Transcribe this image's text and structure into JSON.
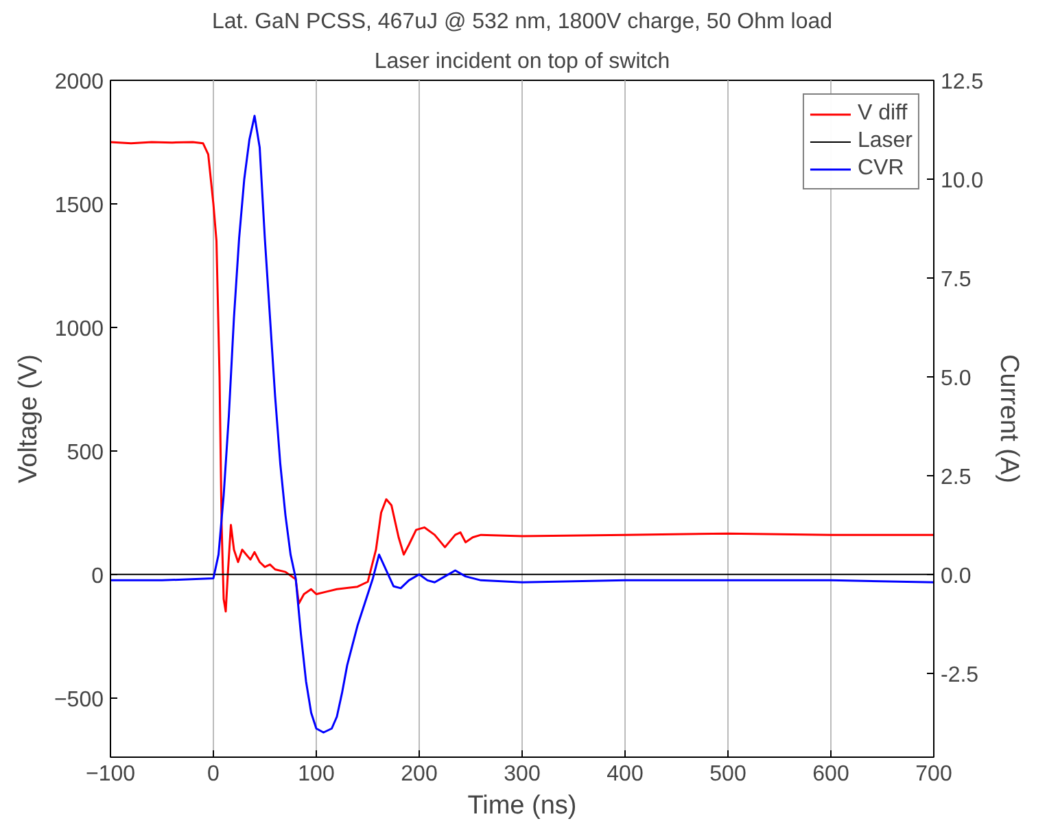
{
  "chart_data": {
    "type": "line",
    "title": "Lat. GaN PCSS, 467uJ @ 532 nm, 1800V charge, 50 Ohm load",
    "subtitle": "Laser incident on top of switch",
    "xlabel": "Time (ns)",
    "ylabel": "Voltage (V)",
    "y2label": "Current (A)",
    "xlim": [
      -100,
      700
    ],
    "xticks": [
      -100,
      0,
      100,
      200,
      300,
      400,
      500,
      600,
      700
    ],
    "ylim": [
      -740,
      2000
    ],
    "yticks": [
      -500,
      0,
      500,
      1000,
      1500,
      2000
    ],
    "y2lim": [
      -4.625,
      12.5
    ],
    "y2ticks": [
      {
        "value": -2.5,
        "label": "-2.5"
      },
      {
        "value": 0,
        "label": "0.0"
      },
      {
        "value": 2.5,
        "label": "2.5"
      },
      {
        "value": 5,
        "label": "5.0"
      },
      {
        "value": 7.5,
        "label": "7.5"
      },
      {
        "value": 10,
        "label": "10.0"
      },
      {
        "value": 12.5,
        "label": "12.5"
      }
    ],
    "grid": "x",
    "legend": "top right",
    "line_style": "solid",
    "marker": "none",
    "series": [
      {
        "name": "V diff",
        "color": "#ff0000",
        "x": [
          -100,
          -80,
          -60,
          -40,
          -20,
          -10,
          -5,
          0,
          3,
          6,
          8,
          10,
          12,
          14,
          17,
          20,
          24,
          28,
          32,
          36,
          40,
          45,
          50,
          55,
          60,
          70,
          80,
          83,
          88,
          95,
          100,
          110,
          120,
          140,
          150,
          158,
          163,
          168,
          173,
          180,
          185,
          190,
          197,
          205,
          215,
          225,
          235,
          240,
          245,
          252,
          260,
          300,
          400,
          500,
          600,
          700
        ],
        "values": [
          1750,
          1745,
          1750,
          1748,
          1750,
          1745,
          1700,
          1500,
          1350,
          800,
          200,
          -100,
          -150,
          0,
          200,
          100,
          50,
          100,
          80,
          60,
          90,
          50,
          30,
          40,
          20,
          10,
          -20,
          -118,
          -80,
          -60,
          -80,
          -70,
          -60,
          -50,
          -30,
          100,
          250,
          304,
          280,
          150,
          80,
          120,
          180,
          190,
          160,
          110,
          160,
          170,
          130,
          150,
          160,
          155,
          160,
          165,
          160,
          160
        ]
      },
      {
        "name": "Laser",
        "color": "#000000",
        "x": [
          -100,
          700
        ],
        "values": [
          0,
          0
        ]
      },
      {
        "name": "CVR",
        "color": "#0000ff",
        "axis": "y2",
        "x": [
          -100,
          -50,
          0,
          5,
          10,
          15,
          20,
          25,
          30,
          35,
          40,
          45,
          50,
          55,
          60,
          65,
          70,
          75,
          80,
          85,
          90,
          95,
          100,
          107,
          115,
          120,
          125,
          130,
          140,
          150,
          155,
          161,
          168,
          175,
          182,
          190,
          200,
          208,
          215,
          225,
          235,
          245,
          260,
          300,
          400,
          500,
          600,
          700
        ],
        "values": [
          -0.15,
          -0.15,
          -0.1,
          0.5,
          2,
          4,
          6.5,
          8.5,
          10,
          11,
          11.6,
          10.8,
          8.5,
          6.5,
          4.5,
          2.8,
          1.5,
          0.5,
          -0.1,
          -1.5,
          -2.7,
          -3.5,
          -3.9,
          -4.0,
          -3.9,
          -3.6,
          -3,
          -2.3,
          -1.3,
          -0.5,
          -0.1,
          0.5,
          0.1,
          -0.3,
          -0.35,
          -0.15,
          0,
          -0.15,
          -0.2,
          -0.05,
          0.1,
          -0.05,
          -0.15,
          -0.2,
          -0.15,
          -0.15,
          -0.15,
          -0.2
        ]
      }
    ]
  }
}
